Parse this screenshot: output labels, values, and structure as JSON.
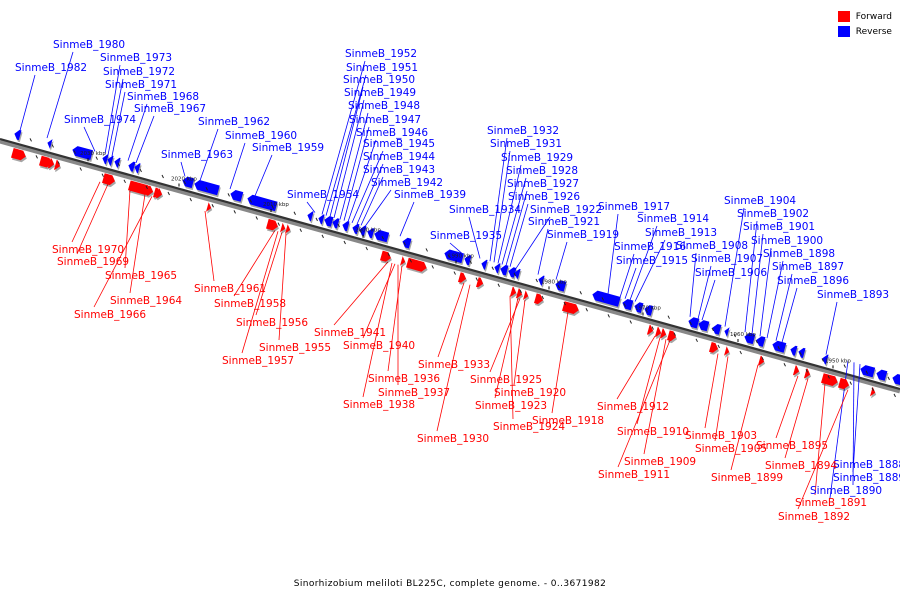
{
  "legend": {
    "forward": {
      "label": "Forward",
      "color": "#ff0000"
    },
    "reverse": {
      "label": "Reverse",
      "color": "#0000ff"
    }
  },
  "caption": "Sinorhizobium meliloti BL225C, complete genome. - 0..3671982",
  "ticks": [
    "2030 kbp",
    "2020 kbp",
    "2010 kbp",
    "2000 kbp",
    "1990 kbp",
    "1980 kbp",
    "1970 kbp",
    "1960 kbp",
    "1950 kbp"
  ],
  "forward_genes": [
    "SinmeB_1970",
    "SinmeB_1969",
    "SinmeB_1965",
    "SinmeB_1964",
    "SinmeB_1966",
    "SinmeB_1961",
    "SinmeB_1958",
    "SinmeB_1956",
    "SinmeB_1955",
    "SinmeB_1957",
    "SinmeB_1941",
    "SinmeB_1940",
    "SinmeB_1933",
    "SinmeB_1936",
    "SinmeB_1937",
    "SinmeB_1938",
    "SinmeB_1930",
    "SinmeB_1925",
    "SinmeB_1920",
    "SinmeB_1923",
    "SinmeB_1924",
    "SinmeB_1918",
    "SinmeB_1912",
    "SinmeB_1910",
    "SinmeB_1909",
    "SinmeB_1911",
    "SinmeB_1903",
    "SinmeB_1905",
    "SinmeB_1899",
    "SinmeB_1895",
    "SinmeB_1894",
    "SinmeB_1891",
    "SinmeB_1892"
  ],
  "reverse_genes": [
    "SinmeB_1980",
    "SinmeB_1982",
    "SinmeB_1973",
    "SinmeB_1972",
    "SinmeB_1971",
    "SinmeB_1968",
    "SinmeB_1967",
    "SinmeB_1974",
    "SinmeB_1962",
    "SinmeB_1960",
    "SinmeB_1963",
    "SinmeB_1959",
    "SinmeB_1952",
    "SinmeB_1951",
    "SinmeB_1950",
    "SinmeB_1949",
    "SinmeB_1948",
    "SinmeB_1947",
    "SinmeB_1946",
    "SinmeB_1945",
    "SinmeB_1944",
    "SinmeB_1943",
    "SinmeB_1942",
    "SinmeB_1954",
    "SinmeB_1939",
    "SinmeB_1932",
    "SinmeB_1931",
    "SinmeB_1929",
    "SinmeB_1928",
    "SinmeB_1927",
    "SinmeB_1926",
    "SinmeB_1934",
    "SinmeB_1922",
    "SinmeB_1921",
    "SinmeB_1935",
    "SinmeB_1919",
    "SinmeB_1917",
    "SinmeB_1914",
    "SinmeB_1913",
    "SinmeB_1916",
    "SinmeB_1915",
    "SinmeB_1908",
    "SinmeB_1907",
    "SinmeB_1906",
    "SinmeB_1904",
    "SinmeB_1902",
    "SinmeB_1901",
    "SinmeB_1900",
    "SinmeB_1898",
    "SinmeB_1897",
    "SinmeB_1896",
    "SinmeB_1893",
    "SinmeB_1888",
    "SinmeB_1889",
    "SinmeB_1890"
  ]
}
